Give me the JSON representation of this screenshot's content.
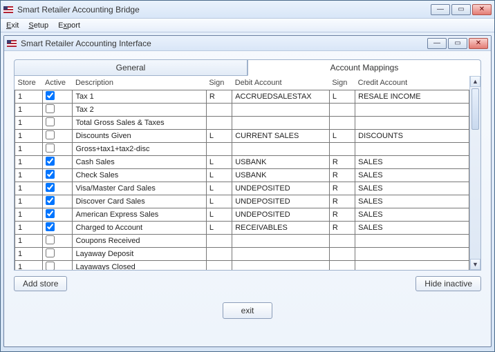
{
  "outer": {
    "title": "Smart Retailer Accounting Bridge",
    "menu": {
      "exit": "Exit",
      "setup": "Setup",
      "export": "Export"
    }
  },
  "inner": {
    "title": "Smart Retailer Accounting Interface"
  },
  "tabs": {
    "general": "General",
    "mappings": "Account Mappings"
  },
  "grid": {
    "headers": {
      "store": "Store",
      "active": "Active",
      "description": "Description",
      "sign": "Sign",
      "debit": "Debit Account",
      "sign2": "Sign",
      "credit": "Credit Account"
    },
    "rows": [
      {
        "store": "1",
        "active": true,
        "desc": "Tax 1",
        "sign": "R",
        "debit": "ACCRUEDSALESTAX",
        "sign2": "L",
        "credit": "RESALE INCOME"
      },
      {
        "store": "1",
        "active": false,
        "desc": "Tax 2",
        "sign": "",
        "debit": "",
        "sign2": "",
        "credit": ""
      },
      {
        "store": "1",
        "active": false,
        "desc": "Total Gross Sales & Taxes",
        "sign": "",
        "debit": "",
        "sign2": "",
        "credit": ""
      },
      {
        "store": "1",
        "active": false,
        "desc": "Discounts Given",
        "sign": "L",
        "debit": "CURRENT SALES",
        "sign2": "L",
        "credit": "DISCOUNTS"
      },
      {
        "store": "1",
        "active": false,
        "desc": "Gross+tax1+tax2-disc",
        "sign": "",
        "debit": "",
        "sign2": "",
        "credit": ""
      },
      {
        "store": "1",
        "active": true,
        "desc": "Cash Sales",
        "sign": "L",
        "debit": "USBANK",
        "sign2": "R",
        "credit": "SALES"
      },
      {
        "store": "1",
        "active": true,
        "desc": "Check Sales",
        "sign": "L",
        "debit": "USBANK",
        "sign2": "R",
        "credit": "SALES"
      },
      {
        "store": "1",
        "active": true,
        "desc": "Visa/Master Card Sales",
        "sign": "L",
        "debit": "UNDEPOSITED",
        "sign2": "R",
        "credit": "SALES"
      },
      {
        "store": "1",
        "active": true,
        "desc": "Discover Card Sales",
        "sign": "L",
        "debit": "UNDEPOSITED",
        "sign2": "R",
        "credit": "SALES"
      },
      {
        "store": "1",
        "active": true,
        "desc": "American Express Sales",
        "sign": "L",
        "debit": "UNDEPOSITED",
        "sign2": "R",
        "credit": "SALES"
      },
      {
        "store": "1",
        "active": true,
        "desc": "Charged to Account",
        "sign": "L",
        "debit": "RECEIVABLES",
        "sign2": "R",
        "credit": "SALES"
      },
      {
        "store": "1",
        "active": false,
        "desc": "Coupons Received",
        "sign": "",
        "debit": "",
        "sign2": "",
        "credit": ""
      },
      {
        "store": "1",
        "active": false,
        "desc": "Layaway Deposit",
        "sign": "",
        "debit": "",
        "sign2": "",
        "credit": ""
      },
      {
        "store": "1",
        "active": false,
        "desc": "Layaways Closed",
        "sign": "",
        "debit": "",
        "sign2": "",
        "credit": ""
      }
    ]
  },
  "buttons": {
    "addStore": "Add store",
    "hideInactive": "Hide inactive",
    "exit": "exit"
  },
  "colors": {
    "windowBorder": "#4a6a8a",
    "accent": "#d6e4f5"
  }
}
